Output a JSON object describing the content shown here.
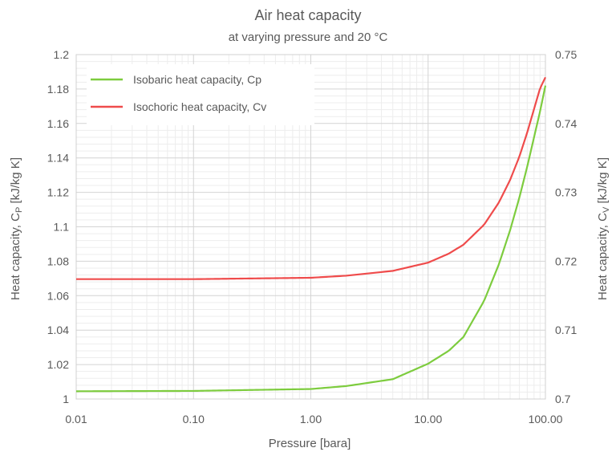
{
  "chart_data": {
    "type": "line",
    "title": "Air heat capacity",
    "subtitle": "at varying pressure and 20 °C",
    "xlabel": "Pressure [bara]",
    "ylabel_left": {
      "main": "Heat capacity, C",
      "sub": "P",
      "unit": " [kJ/kg K]"
    },
    "ylabel_right": {
      "main": "Heat capacity, C",
      "sub": "V",
      "unit": " [kJ/kg K]"
    },
    "x_scale": "log",
    "xlim": [
      0.01,
      100
    ],
    "x_ticks": [
      0.01,
      0.1,
      1,
      10,
      100
    ],
    "x_tick_labels": [
      "0.01",
      "0.10",
      "1.00",
      "10.00",
      "100.00"
    ],
    "ylim_left": [
      1.0,
      1.2
    ],
    "y_ticks_left": [
      1.0,
      1.02,
      1.04,
      1.06,
      1.08,
      1.1,
      1.12,
      1.14,
      1.16,
      1.18,
      1.2
    ],
    "y_tick_labels_left": [
      "1",
      "1.02",
      "1.04",
      "1.06",
      "1.08",
      "1.1",
      "1.12",
      "1.14",
      "1.16",
      "1.18",
      "1.2"
    ],
    "ylim_right": [
      0.7,
      0.75
    ],
    "y_ticks_right": [
      0.7,
      0.71,
      0.72,
      0.73,
      0.74,
      0.75
    ],
    "y_tick_labels_right": [
      "0.7",
      "0.71",
      "0.72",
      "0.73",
      "0.74",
      "0.75"
    ],
    "grid": true,
    "legend_position": "top-left",
    "series": [
      {
        "name": "Isobaric heat capacity, Cp",
        "axis": "left",
        "color": "#7dcc3e",
        "x": [
          0.01,
          0.1,
          1,
          2,
          5,
          10,
          15,
          20,
          30,
          40,
          50,
          60,
          70,
          80,
          90,
          100
        ],
        "y": [
          1.0045,
          1.0047,
          1.0058,
          1.0075,
          1.0115,
          1.0205,
          1.028,
          1.036,
          1.057,
          1.078,
          1.098,
          1.117,
          1.135,
          1.152,
          1.167,
          1.182
        ]
      },
      {
        "name": "Isochoric heat capacity, Cv",
        "axis": "right",
        "color": "#ef4b4b",
        "x": [
          0.01,
          0.1,
          1,
          2,
          5,
          10,
          15,
          20,
          30,
          40,
          50,
          60,
          70,
          80,
          90,
          100
        ],
        "y": [
          0.7174,
          0.7174,
          0.7176,
          0.7179,
          0.7186,
          0.7198,
          0.7211,
          0.7224,
          0.7253,
          0.7285,
          0.7318,
          0.7352,
          0.7387,
          0.7421,
          0.7451,
          0.7467
        ]
      }
    ]
  }
}
